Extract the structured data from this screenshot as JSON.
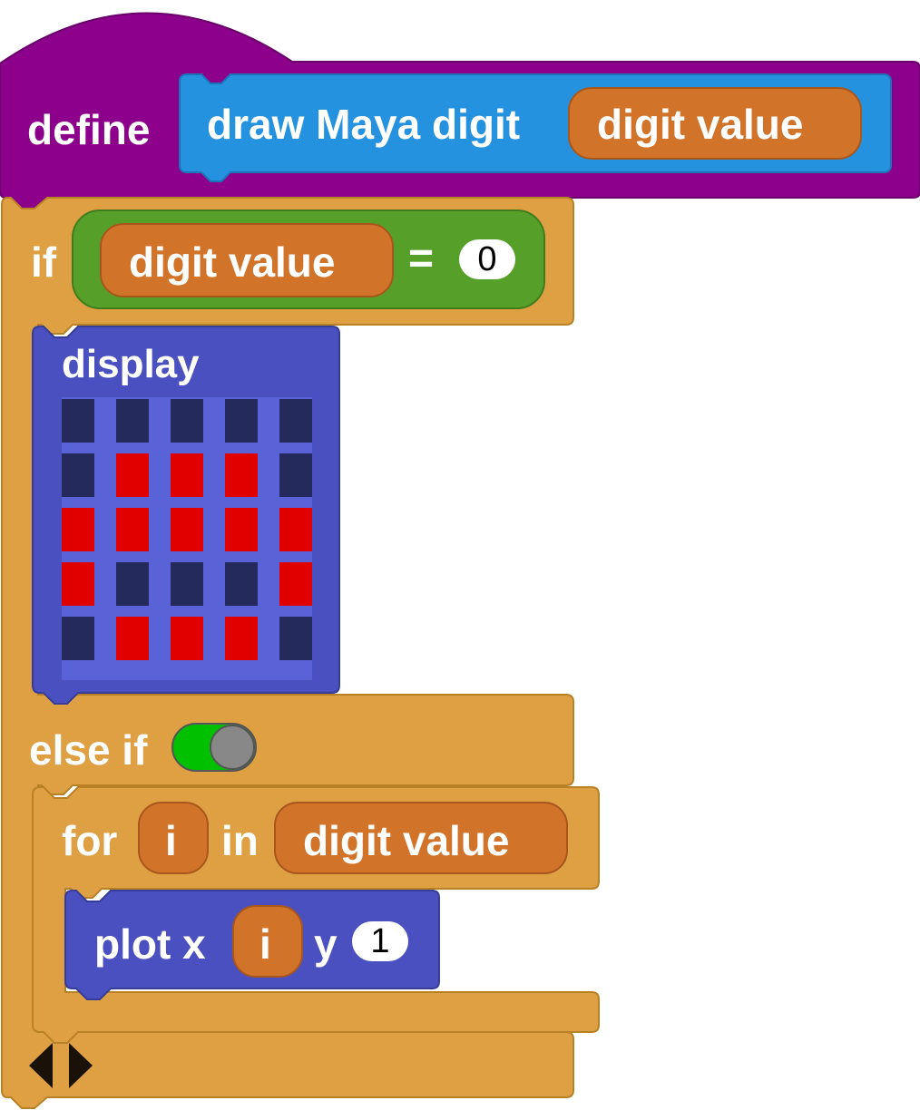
{
  "define_block": {
    "keyword": "define",
    "custom_block_label": "draw Maya digit",
    "parameter": "digit value"
  },
  "if_block": {
    "keyword": "if",
    "condition": {
      "variable": "digit value",
      "operator": "=",
      "value": "0"
    },
    "else_if_keyword": "else if",
    "else_if_toggle": "on"
  },
  "display_block": {
    "label": "display",
    "grid": [
      [
        0,
        0,
        0,
        0,
        0
      ],
      [
        0,
        1,
        1,
        1,
        0
      ],
      [
        1,
        1,
        1,
        1,
        1
      ],
      [
        1,
        0,
        0,
        0,
        1
      ],
      [
        0,
        1,
        1,
        1,
        0
      ]
    ],
    "on_color": "#e00000",
    "off_color": "#252a5c"
  },
  "for_block": {
    "keyword": "for",
    "variable": "i",
    "in_keyword": "in",
    "iterable": "digit value"
  },
  "plot_block": {
    "label": "plot x",
    "x_var": "i",
    "y_label": "y",
    "y_value": "1"
  },
  "colors": {
    "define": "#8c008c",
    "custom_block": "#2592e0",
    "control": "#dea042",
    "operator": "#56a02a",
    "variable": "#d2732a",
    "led": "#4a50c0"
  }
}
